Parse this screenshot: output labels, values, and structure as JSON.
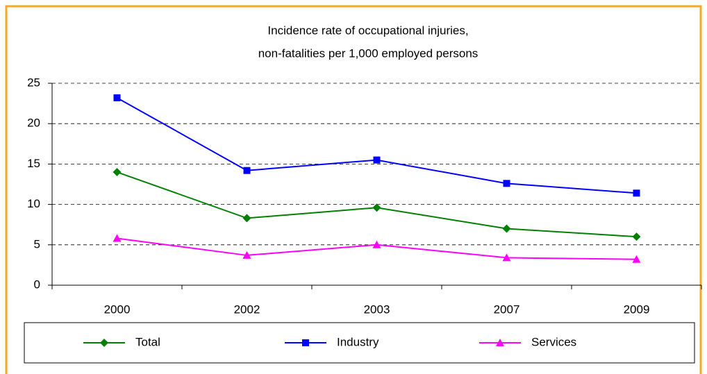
{
  "chart_data": {
    "type": "line",
    "title": [
      "Incidence rate of occupational injuries,",
      "non-fatalities per 1,000 employed persons"
    ],
    "categories": [
      "2000",
      "2002",
      "2003",
      "2007",
      "2009"
    ],
    "series": [
      {
        "name": "Total",
        "color": "#008000",
        "marker": "diamond",
        "values": [
          14.0,
          8.3,
          9.6,
          7.0,
          6.0
        ]
      },
      {
        "name": "Industry",
        "color": "#0000ff",
        "marker": "square",
        "values": [
          23.2,
          14.2,
          15.5,
          12.6,
          11.4
        ]
      },
      {
        "name": "Services",
        "color": "#ff00ff",
        "marker": "triangle",
        "values": [
          5.8,
          3.7,
          5.0,
          3.4,
          3.2
        ]
      }
    ],
    "ylim": [
      0,
      25
    ],
    "yticks": [
      0,
      5,
      10,
      15,
      20,
      25
    ],
    "grid": true,
    "legend": "bottom"
  }
}
